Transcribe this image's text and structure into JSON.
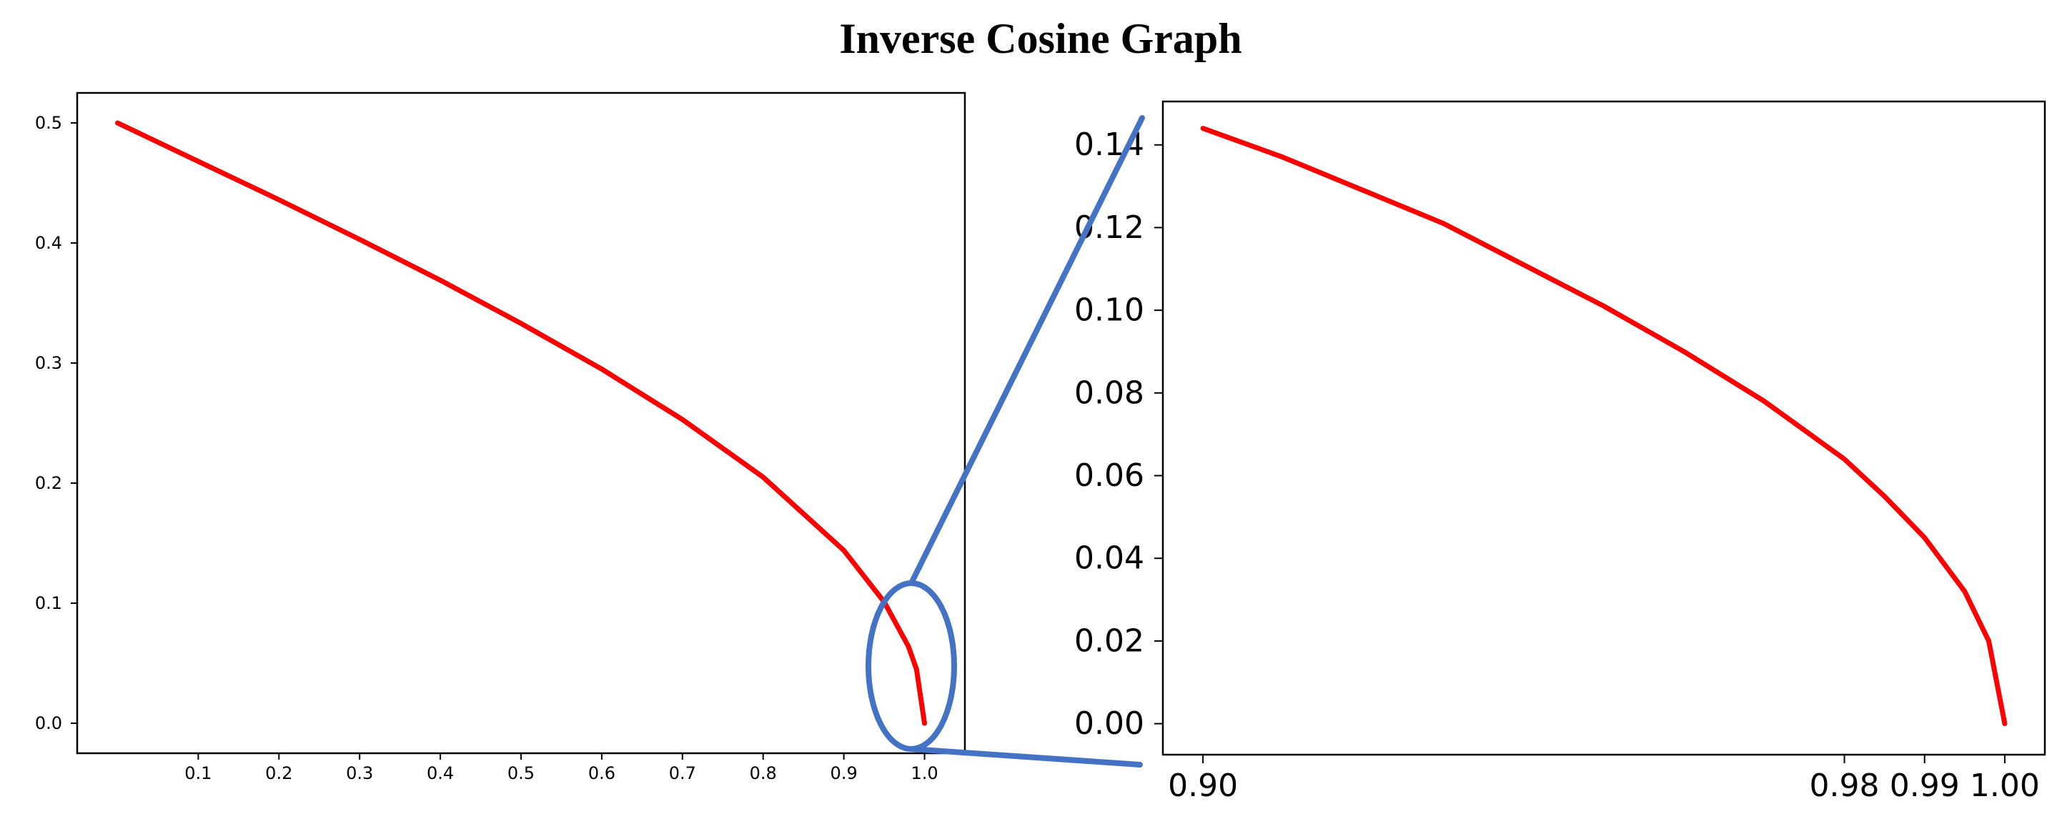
{
  "chart_data": [
    {
      "type": "line",
      "title": "Inverse Cosine Graph",
      "xlabel": "",
      "ylabel": "",
      "xlim": [
        -0.05,
        1.05
      ],
      "ylim": [
        -0.025,
        0.525
      ],
      "x_ticks": [
        "0.1",
        "0.2",
        "0.3",
        "0.4",
        "0.5",
        "0.6",
        "0.7",
        "0.8",
        "0.9",
        "1.0"
      ],
      "y_ticks": [
        "0.0",
        "0.1",
        "0.2",
        "0.3",
        "0.4",
        "0.5"
      ],
      "series": [
        {
          "color": "#ff0000",
          "x": [
            0.0,
            0.1,
            0.2,
            0.3,
            0.4,
            0.5,
            0.6,
            0.7,
            0.8,
            0.9,
            0.95,
            0.98,
            0.99,
            1.0
          ],
          "y": [
            0.5,
            0.468,
            0.436,
            0.403,
            0.369,
            0.333,
            0.295,
            0.253,
            0.205,
            0.144,
            0.101,
            0.064,
            0.045,
            0.0
          ]
        }
      ],
      "grid": false
    },
    {
      "type": "line",
      "xlabel": "",
      "ylabel": "",
      "xlim": [
        0.895,
        1.005
      ],
      "ylim": [
        -0.0075,
        0.1505
      ],
      "x_ticks": [
        "0.90",
        "0.98",
        "0.99",
        "1.00"
      ],
      "y_ticks": [
        "0.00",
        "0.02",
        "0.04",
        "0.06",
        "0.08",
        "0.10",
        "0.12",
        "0.14"
      ],
      "series": [
        {
          "color": "#ff0000",
          "x": [
            0.9,
            0.91,
            0.92,
            0.93,
            0.94,
            0.95,
            0.96,
            0.97,
            0.98,
            0.985,
            0.99,
            0.995,
            0.998,
            1.0
          ],
          "y": [
            0.144,
            0.137,
            0.129,
            0.121,
            0.111,
            0.101,
            0.09,
            0.078,
            0.064,
            0.055,
            0.045,
            0.032,
            0.02,
            0.0
          ]
        }
      ],
      "grid": false
    }
  ],
  "zoom_callout": {
    "color": "#4472c4"
  }
}
